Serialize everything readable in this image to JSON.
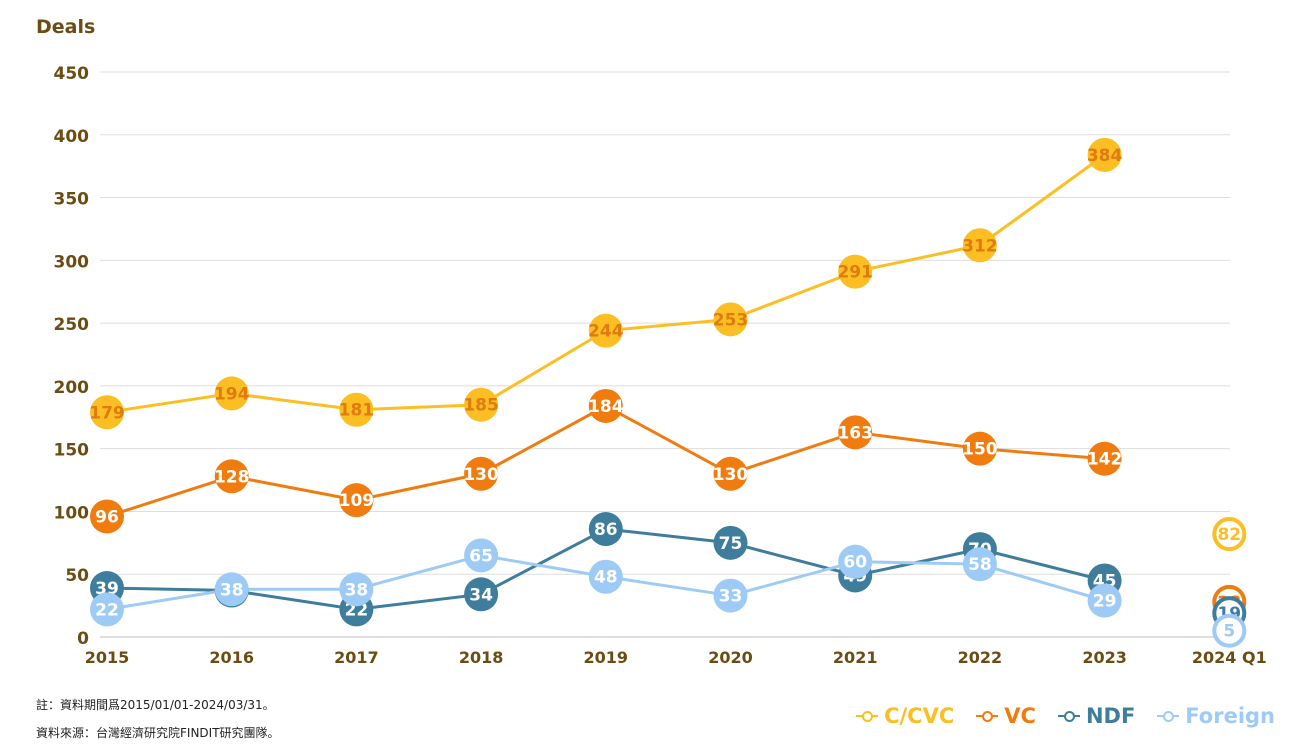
{
  "chart_data": {
    "type": "line",
    "ylabel": "Deals",
    "ylim": [
      0,
      450
    ],
    "yticks": [
      0,
      50,
      100,
      150,
      200,
      250,
      300,
      350,
      400,
      450
    ],
    "grid": true,
    "legend_position": "bottom-right",
    "categories": [
      "2015",
      "2016",
      "2017",
      "2018",
      "2019",
      "2020",
      "2021",
      "2022",
      "2023",
      "2024 Q1"
    ],
    "series": [
      {
        "name": "C/CVC",
        "color": "#fbbf24",
        "label_color": "#e07b10",
        "values": [
          179,
          194,
          181,
          185,
          244,
          253,
          291,
          312,
          384,
          82
        ],
        "last_hollow": true
      },
      {
        "name": "VC",
        "color": "#f07c10",
        "label_color": "#ffffff",
        "values": [
          96,
          128,
          109,
          130,
          184,
          130,
          163,
          150,
          142,
          28
        ],
        "last_hollow": true
      },
      {
        "name": "NDF",
        "color": "#3f7d9d",
        "label_color": "#ffffff",
        "values": [
          39,
          37,
          22,
          34,
          86,
          75,
          49,
          70,
          45,
          19
        ],
        "last_hollow": true
      },
      {
        "name": "Foreign",
        "color": "#9ecbf5",
        "label_color": "#ffffff",
        "values": [
          22,
          38,
          38,
          65,
          48,
          33,
          60,
          58,
          29,
          5
        ],
        "last_hollow": true
      }
    ]
  },
  "notes": {
    "period": "註：資料期間爲2015/01/01-2024/03/31。",
    "source": "資料來源：台灣經濟研究院FINDIT研究團隊。"
  },
  "legend": {
    "items": [
      {
        "label": "C/CVC",
        "color": "#fbbf24"
      },
      {
        "label": "VC",
        "color": "#f07c10"
      },
      {
        "label": "NDF",
        "color": "#3f7d9d"
      },
      {
        "label": "Foreign",
        "color": "#9ecbf5"
      }
    ]
  }
}
